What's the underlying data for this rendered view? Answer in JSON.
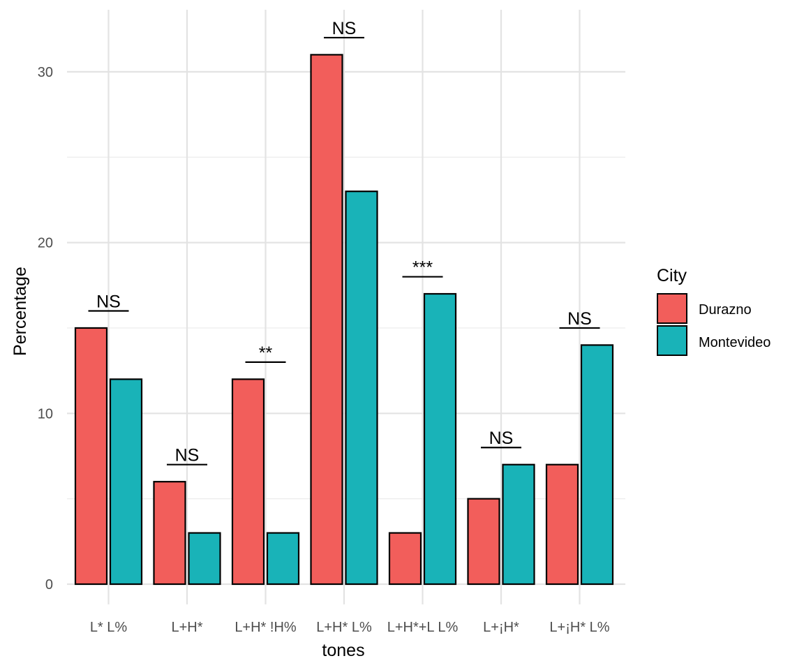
{
  "chart_data": {
    "type": "bar",
    "xlabel": "tones",
    "ylabel": "Percentage",
    "ylim": [
      0,
      33.5
    ],
    "yticks": [
      0,
      10,
      20,
      30
    ],
    "grid": true,
    "categories": [
      "L* L%",
      "L+H*",
      "L+H* !H%",
      "L+H* L%",
      "L+H*+L L%",
      "L+¡H*",
      "L+¡H* L%"
    ],
    "series": [
      {
        "name": "Durazno",
        "color": "#F25E5B",
        "values": [
          15,
          6,
          12,
          31,
          3,
          5,
          7
        ]
      },
      {
        "name": "Montevideo",
        "color": "#19B3B8",
        "values": [
          12,
          3,
          3,
          23,
          17,
          7,
          14
        ]
      }
    ],
    "significance": [
      {
        "category": "L* L%",
        "label": "NS",
        "y": 16
      },
      {
        "category": "L+H*",
        "label": "NS",
        "y": 7
      },
      {
        "category": "L+H* !H%",
        "label": "**",
        "y": 13
      },
      {
        "category": "L+H* L%",
        "label": "NS",
        "y": 32
      },
      {
        "category": "L+H*+L L%",
        "label": "***",
        "y": 18
      },
      {
        "category": "L+¡H*",
        "label": "NS",
        "y": 8
      },
      {
        "category": "L+¡H* L%",
        "label": "NS",
        "y": 15
      }
    ],
    "legend": {
      "title": "City",
      "position": "right"
    }
  }
}
